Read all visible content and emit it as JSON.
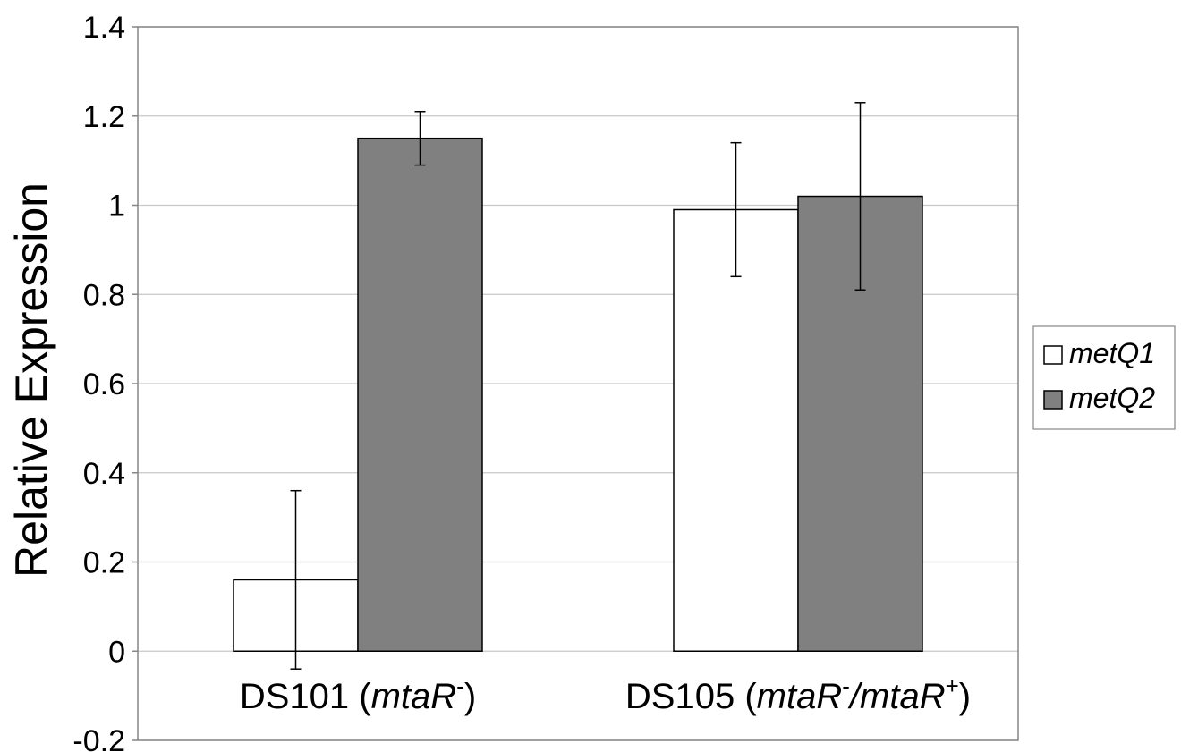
{
  "chart_data": {
    "type": "bar",
    "title": "",
    "xlabel": "",
    "ylabel": "Relative Expression",
    "ylim": [
      -0.2,
      1.4
    ],
    "yticks": [
      1.4,
      1.2,
      1.0,
      0.8,
      0.6,
      0.4,
      0.2,
      0,
      -0.2
    ],
    "ytick_labels": [
      "1.4",
      "1.2",
      "1",
      "0.8",
      "0.6",
      "0.4",
      "0.2",
      "0",
      "-0.2"
    ],
    "grid": true,
    "legend_position": "right",
    "categories": [
      {
        "name": "DS101",
        "open": " (",
        "gene1": "mtaR",
        "sup1": "-",
        "sep": "",
        "gene2": "",
        "sup2": "",
        "close": ")"
      },
      {
        "name": "DS105",
        "open": " (",
        "gene1": "mtaR",
        "sup1": "-",
        "sep": "/",
        "gene2": "mtaR",
        "sup2": "+",
        "close": ")"
      }
    ],
    "series": [
      {
        "name": "metQ1",
        "color": "#ffffff",
        "values": [
          0.16,
          0.99
        ],
        "errors": [
          0.2,
          0.15
        ]
      },
      {
        "name": "metQ2",
        "color": "#808080",
        "values": [
          1.15,
          1.02
        ],
        "errors": [
          0.06,
          0.21
        ]
      }
    ]
  }
}
